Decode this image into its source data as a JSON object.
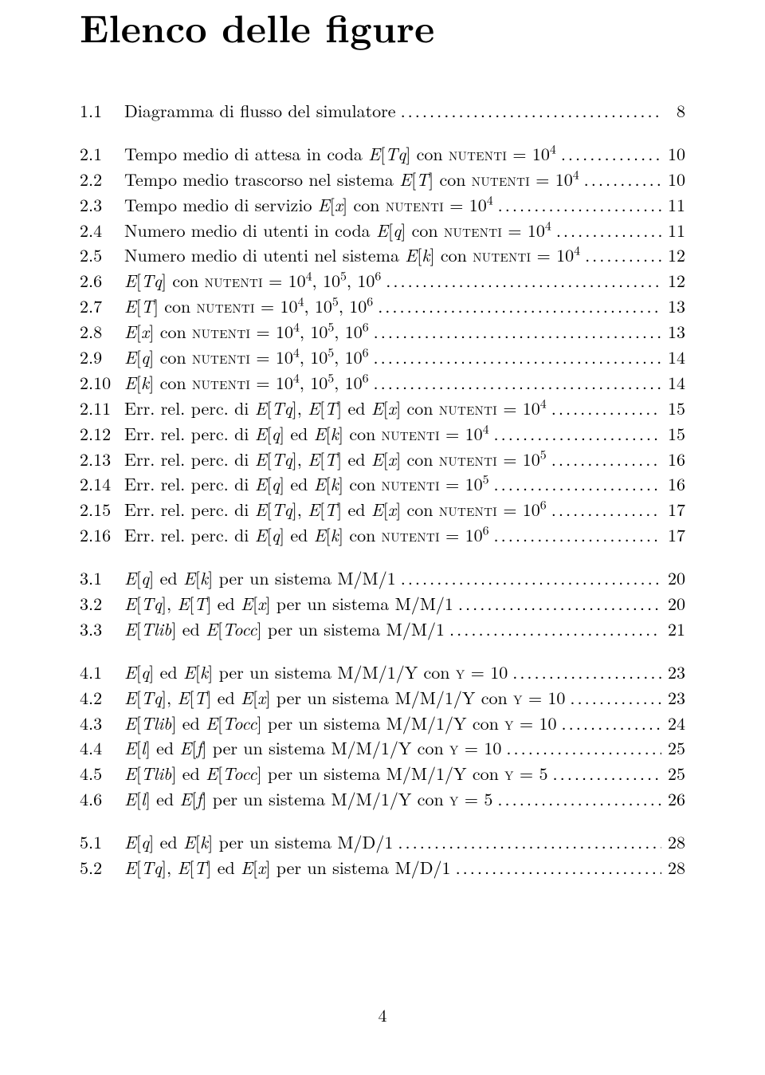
{
  "title": "Elenco delle figure",
  "page_number": "4",
  "dot_fill": ".....................................................",
  "groups": [
    {
      "entries": [
        {
          "num": "1.1",
          "label_html": "Diagramma di flusso del simulatore",
          "page": "8"
        }
      ]
    },
    {
      "entries": [
        {
          "num": "2.1",
          "label_html": "Tempo medio di attesa in coda <span class='it'>E</span>[<span class='it'>Tq</span>] con <span class='sc'>nutenti</span> = 10<sup>4</sup>",
          "page": "10"
        },
        {
          "num": "2.2",
          "label_html": "Tempo medio trascorso nel sistema <span class='it'>E</span>[<span class='it'>T</span>] con <span class='sc'>nutenti</span> = 10<sup>4</sup>",
          "page": "10"
        },
        {
          "num": "2.3",
          "label_html": "Tempo medio di servizio <span class='it'>E</span>[<span class='it'>x</span>] con <span class='sc'>nutenti</span> = 10<sup>4</sup>",
          "page": "11"
        },
        {
          "num": "2.4",
          "label_html": "Numero medio di utenti in coda <span class='it'>E</span>[<span class='it'>q</span>] con <span class='sc'>nutenti</span> = 10<sup>4</sup>",
          "page": "11"
        },
        {
          "num": "2.5",
          "label_html": "Numero medio di utenti nel sistema <span class='it'>E</span>[<span class='it'>k</span>] con <span class='sc'>nutenti</span> = 10<sup>4</sup>",
          "page": "12"
        },
        {
          "num": "2.6",
          "label_html": "<span class='it'>E</span>[<span class='it'>Tq</span>] con <span class='sc'>nutenti</span> = 10<sup>4</sup>, 10<sup>5</sup>, 10<sup>6</sup>",
          "page": "12"
        },
        {
          "num": "2.7",
          "label_html": "<span class='it'>E</span>[<span class='it'>T</span>] con <span class='sc'>nutenti</span> = 10<sup>4</sup>, 10<sup>5</sup>, 10<sup>6</sup>",
          "page": "13"
        },
        {
          "num": "2.8",
          "label_html": "<span class='it'>E</span>[<span class='it'>x</span>] con <span class='sc'>nutenti</span> = 10<sup>4</sup>, 10<sup>5</sup>, 10<sup>6</sup>",
          "page": "13"
        },
        {
          "num": "2.9",
          "label_html": "<span class='it'>E</span>[<span class='it'>q</span>] con <span class='sc'>nutenti</span> = 10<sup>4</sup>, 10<sup>5</sup>, 10<sup>6</sup>",
          "page": "14"
        },
        {
          "num": "2.10",
          "label_html": "<span class='it'>E</span>[<span class='it'>k</span>] con <span class='sc'>nutenti</span> = 10<sup>4</sup>, 10<sup>5</sup>, 10<sup>6</sup>",
          "page": "14"
        },
        {
          "num": "2.11",
          "label_html": "Err. rel. perc. di <span class='it'>E</span>[<span class='it'>Tq</span>], <span class='it'>E</span>[<span class='it'>T</span>] ed <span class='it'>E</span>[<span class='it'>x</span>] con <span class='sc'>nutenti</span> = 10<sup>4</sup>",
          "page": "15"
        },
        {
          "num": "2.12",
          "label_html": "Err. rel. perc. di <span class='it'>E</span>[<span class='it'>q</span>] ed <span class='it'>E</span>[<span class='it'>k</span>] con <span class='sc'>nutenti</span> = 10<sup>4</sup>",
          "page": "15"
        },
        {
          "num": "2.13",
          "label_html": "Err. rel. perc. di <span class='it'>E</span>[<span class='it'>Tq</span>], <span class='it'>E</span>[<span class='it'>T</span>] ed <span class='it'>E</span>[<span class='it'>x</span>] con <span class='sc'>nutenti</span> = 10<sup>5</sup>",
          "page": "16"
        },
        {
          "num": "2.14",
          "label_html": "Err. rel. perc. di <span class='it'>E</span>[<span class='it'>q</span>] ed <span class='it'>E</span>[<span class='it'>k</span>] con <span class='sc'>nutenti</span> = 10<sup>5</sup>",
          "page": "16"
        },
        {
          "num": "2.15",
          "label_html": "Err. rel. perc. di <span class='it'>E</span>[<span class='it'>Tq</span>], <span class='it'>E</span>[<span class='it'>T</span>] ed <span class='it'>E</span>[<span class='it'>x</span>] con <span class='sc'>nutenti</span> = 10<sup>6</sup>",
          "page": "17"
        },
        {
          "num": "2.16",
          "label_html": "Err. rel. perc. di <span class='it'>E</span>[<span class='it'>q</span>] ed <span class='it'>E</span>[<span class='it'>k</span>] con <span class='sc'>nutenti</span> = 10<sup>6</sup>",
          "page": "17"
        }
      ]
    },
    {
      "entries": [
        {
          "num": "3.1",
          "label_html": "<span class='it'>E</span>[<span class='it'>q</span>] ed <span class='it'>E</span>[<span class='it'>k</span>] per un sistema M/M/1",
          "page": "20"
        },
        {
          "num": "3.2",
          "label_html": "<span class='it'>E</span>[<span class='it'>Tq</span>], <span class='it'>E</span>[<span class='it'>T</span>] ed <span class='it'>E</span>[<span class='it'>x</span>] per un sistema M/M/1",
          "page": "20"
        },
        {
          "num": "3.3",
          "label_html": "<span class='it'>E</span>[<span class='it'>Tlib</span>] ed <span class='it'>E</span>[<span class='it'>Tocc</span>] per un sistema M/M/1",
          "page": "21"
        }
      ]
    },
    {
      "entries": [
        {
          "num": "4.1",
          "label_html": "<span class='it'>E</span>[<span class='it'>q</span>] ed <span class='it'>E</span>[<span class='it'>k</span>] per un sistema M/M/1/Y con <span class='sc'>y</span> = 10",
          "page": "23"
        },
        {
          "num": "4.2",
          "label_html": "<span class='it'>E</span>[<span class='it'>Tq</span>], <span class='it'>E</span>[<span class='it'>T</span>] ed <span class='it'>E</span>[<span class='it'>x</span>] per un sistema M/M/1/Y con <span class='sc'>y</span> = 10",
          "page": "23"
        },
        {
          "num": "4.3",
          "label_html": "<span class='it'>E</span>[<span class='it'>Tlib</span>] ed <span class='it'>E</span>[<span class='it'>Tocc</span>] per un sistema M/M/1/Y con <span class='sc'>y</span> = 10",
          "page": "24"
        },
        {
          "num": "4.4",
          "label_html": "<span class='it'>E</span>[<span class='it'>l</span>] ed <span class='it'>E</span>[<span class='it'>f</span>] per un sistema M/M/1/Y con <span class='sc'>y</span> = 10",
          "page": "25"
        },
        {
          "num": "4.5",
          "label_html": "<span class='it'>E</span>[<span class='it'>Tlib</span>] ed <span class='it'>E</span>[<span class='it'>Tocc</span>] per un sistema M/M/1/Y con <span class='sc'>y</span> = 5",
          "page": "25"
        },
        {
          "num": "4.6",
          "label_html": "<span class='it'>E</span>[<span class='it'>l</span>] ed <span class='it'>E</span>[<span class='it'>f</span>] per un sistema M/M/1/Y con <span class='sc'>y</span> = 5",
          "page": "26"
        }
      ]
    },
    {
      "entries": [
        {
          "num": "5.1",
          "label_html": "<span class='it'>E</span>[<span class='it'>q</span>] ed <span class='it'>E</span>[<span class='it'>k</span>] per un sistema M/D/1",
          "page": "28"
        },
        {
          "num": "5.2",
          "label_html": "<span class='it'>E</span>[<span class='it'>Tq</span>], <span class='it'>E</span>[<span class='it'>T</span>] ed <span class='it'>E</span>[<span class='it'>x</span>] per un sistema M/D/1",
          "page": "28"
        }
      ]
    }
  ],
  "style": {
    "background_color": "#ffffff",
    "text_color": "#000000",
    "title_fontsize_pt": 36,
    "body_fontsize_pt": 16,
    "font_family": "Computer Modern / Latin Modern serif"
  }
}
